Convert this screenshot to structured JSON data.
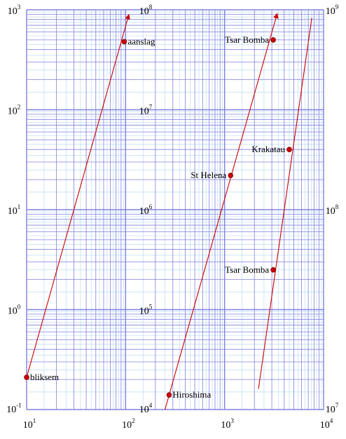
{
  "chart_data": {
    "type": "line",
    "title": "",
    "xlabel": "",
    "ylabel": "",
    "x_scale": "log",
    "y_scale": "log",
    "grid": true,
    "colors": {
      "grid_major": "#8080e0",
      "grid_minor": "#b0d8f0",
      "line": "#cc0000",
      "marker": "#cc0000"
    },
    "x_axis": {
      "range": [
        10,
        10000
      ],
      "ticks": [
        {
          "value": 10,
          "base": "10",
          "exp": "1"
        },
        {
          "value": 100,
          "base": "10",
          "exp": "2"
        },
        {
          "value": 1000,
          "base": "10",
          "exp": "3"
        },
        {
          "value": 10000,
          "base": "10",
          "exp": "4"
        }
      ]
    },
    "y_axes": [
      {
        "id": "left",
        "range": [
          0.1,
          1000
        ],
        "ticks": [
          {
            "value": 0.1,
            "base": "10",
            "exp": "-1"
          },
          {
            "value": 1,
            "base": "10",
            "exp": "0"
          },
          {
            "value": 10,
            "base": "10",
            "exp": "1"
          },
          {
            "value": 100,
            "base": "10",
            "exp": "2"
          },
          {
            "value": 1000,
            "base": "10",
            "exp": "3"
          }
        ]
      },
      {
        "id": "middle",
        "range": [
          10000,
          100000000
        ],
        "ticks": [
          {
            "value": 10000,
            "base": "10",
            "exp": "4"
          },
          {
            "value": 100000,
            "base": "10",
            "exp": "5"
          },
          {
            "value": 1000000,
            "base": "10",
            "exp": "6"
          },
          {
            "value": 10000000,
            "base": "10",
            "exp": "7"
          },
          {
            "value": 100000000,
            "base": "10",
            "exp": "8"
          }
        ]
      },
      {
        "id": "right",
        "range": [
          10000000,
          1000000000
        ],
        "ticks": [
          {
            "value": 10000000,
            "base": "10",
            "exp": "7"
          },
          {
            "value": 100000000,
            "base": "10",
            "exp": "8"
          },
          {
            "value": 1000000000,
            "base": "10",
            "exp": "9"
          }
        ]
      }
    ],
    "series": [
      {
        "axis": "left",
        "line": {
          "x": [
            10,
            108
          ],
          "y": [
            0.21,
            900
          ]
        },
        "points": [
          {
            "label": "bliksem",
            "x": 10,
            "y": 0.21,
            "label_side": "right"
          },
          {
            "label": "aanslag",
            "x": 97,
            "y": 480,
            "label_side": "right"
          }
        ]
      },
      {
        "axis": "middle",
        "line": {
          "x": [
            250,
            3400
          ],
          "y": [
            10000,
            92000000
          ]
        },
        "points": [
          {
            "label": "Hiroshima",
            "x": 275,
            "y": 14000,
            "label_side": "right"
          },
          {
            "label": "St Helena",
            "x": 1150,
            "y": 2200000,
            "label_side": "left"
          },
          {
            "label": "Tsar Bomba",
            "x": 3100,
            "y": 50000000,
            "label_side": "left"
          }
        ]
      },
      {
        "axis": "right",
        "line": {
          "x": [
            2200,
            7600
          ],
          "y": [
            12700000,
            910000000
          ]
        },
        "points": [
          {
            "label": "Tsar Bomba",
            "x": 3100,
            "y": 50000000,
            "label_side": "left"
          },
          {
            "label": "Krakatau",
            "x": 4500,
            "y": 200000000,
            "label_side": "left"
          }
        ]
      }
    ]
  }
}
